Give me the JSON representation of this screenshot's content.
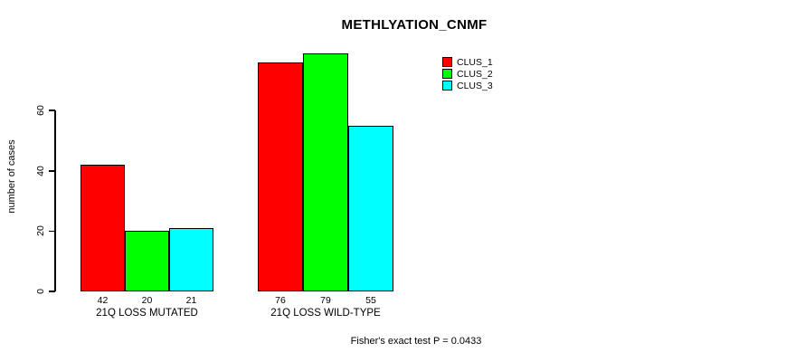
{
  "chart_data": {
    "type": "bar",
    "title": "METHLYATION_CNMF",
    "xlabel": "",
    "ylabel": "number of cases",
    "ylim": [
      0,
      79
    ],
    "yticks": [
      0,
      20,
      40,
      60
    ],
    "grid": false,
    "legend_position": "top-right",
    "categories": [
      "21Q LOSS MUTATED",
      "21Q LOSS WILD-TYPE"
    ],
    "series": [
      {
        "name": "CLUS_1",
        "color": "#ff0000",
        "values": [
          42,
          76
        ]
      },
      {
        "name": "CLUS_2",
        "color": "#00ff00",
        "values": [
          20,
          79
        ]
      },
      {
        "name": "CLUS_3",
        "color": "#00ffff",
        "values": [
          21,
          55
        ]
      }
    ],
    "groups": [
      {
        "label": "21Q LOSS MUTATED",
        "values": [
          42,
          20,
          21
        ]
      },
      {
        "label": "21Q LOSS WILD-TYPE",
        "values": [
          76,
          79,
          55
        ]
      }
    ],
    "bar_value_labels": [
      [
        "42",
        "20",
        "21"
      ],
      [
        "76",
        "79",
        "55"
      ]
    ],
    "footnote": "Fisher's exact test P = 0.0433"
  }
}
